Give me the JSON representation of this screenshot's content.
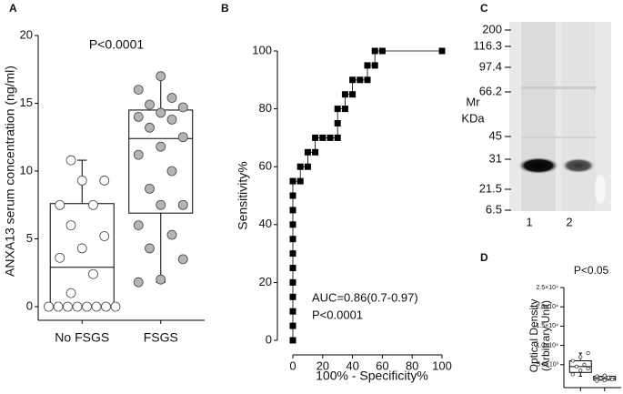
{
  "chart_data": [
    {
      "type": "box",
      "panel": "A",
      "annotation": "P<0.0001",
      "ylabel": "ANXA13 serum concentration (ng/ml)",
      "categories": [
        "No FSGS",
        "FSGS"
      ],
      "ylim": [
        0,
        20
      ],
      "yticks": [
        0,
        5,
        10,
        15,
        20
      ],
      "series": [
        {
          "color": "#ffffff",
          "values": [
            0,
            0,
            0,
            0,
            0,
            0,
            0,
            0,
            1.0,
            2.4,
            3.6,
            4.3,
            5.2,
            6.0,
            7.5,
            7.5,
            9.3,
            9.3,
            10.8
          ],
          "box": {
            "min": 0,
            "q1": 0,
            "median": 2.9,
            "q3": 7.6,
            "max": 10.8
          }
        },
        {
          "color": "#b4b4b4",
          "values": [
            1.8,
            2.0,
            3.5,
            4.3,
            5.3,
            6.0,
            7.5,
            7.5,
            8.7,
            10.0,
            11.2,
            11.8,
            12.5,
            13.2,
            13.8,
            14.0,
            14.3,
            14.7,
            14.9,
            15.4,
            16.0,
            17.0
          ],
          "box": {
            "min": 1.8,
            "q1": 6.9,
            "median": 12.4,
            "q3": 14.5,
            "max": 17.0
          }
        }
      ]
    },
    {
      "type": "line",
      "panel": "B",
      "xlabel": "100% - Specificity%",
      "ylabel": "Sensitivity%",
      "annotations": [
        "AUC=0.86(0.7-0.97)",
        "P<0.0001"
      ],
      "xlim": [
        0,
        100
      ],
      "ylim": [
        0,
        100
      ],
      "xticks": [
        0,
        20,
        40,
        60,
        80,
        100
      ],
      "yticks": [
        0,
        20,
        40,
        60,
        80,
        100
      ],
      "color": "#000000",
      "x": [
        0,
        0,
        0,
        0,
        0,
        0,
        0,
        0,
        0,
        0,
        0,
        0,
        5,
        5,
        10,
        10,
        15,
        15,
        20,
        25,
        30,
        30,
        30,
        35,
        35,
        40,
        40,
        45,
        50,
        50,
        55,
        55,
        60,
        100
      ],
      "values": [
        0,
        5,
        10,
        15,
        20,
        25,
        30,
        35,
        40,
        45,
        50,
        55,
        55,
        60,
        60,
        65,
        65,
        70,
        70,
        70,
        70,
        75,
        80,
        80,
        85,
        85,
        90,
        90,
        90,
        95,
        95,
        100,
        100,
        100
      ]
    },
    {
      "type": "box",
      "panel": "D",
      "annotation": "P<0.05",
      "ylabel": [
        "Optical Density",
        "(Arbitrary Unit)"
      ],
      "categories": [
        null,
        null
      ],
      "ylim": [
        0,
        25000
      ],
      "yticks": [
        {
          "value": 5000,
          "label": "5.0×10³"
        },
        {
          "value": 10000,
          "label": "1.0×10⁴"
        },
        {
          "value": 15000,
          "label": "1.5×10⁴"
        },
        {
          "value": 20000,
          "label": "2.0×10⁴"
        },
        {
          "value": 25000,
          "label": "2.5×10⁴"
        }
      ],
      "series": [
        {
          "color": "#ffffff",
          "values": [
            2500,
            3500,
            4000,
            4500,
            5000,
            6000,
            7000,
            8000
          ],
          "box": {
            "min": 2000,
            "q1": 3000,
            "median": 4500,
            "q3": 6000,
            "max": 8000
          }
        },
        {
          "color": "#ffffff",
          "values": [
            800,
            1000,
            1200,
            1500,
            1700,
            2000,
            2200
          ],
          "box": {
            "min": 700,
            "q1": 1000,
            "median": 1500,
            "q3": 2000,
            "max": 2300
          }
        }
      ]
    }
  ],
  "blot": {
    "panel": "C",
    "markers": [
      "200",
      "116.3",
      "97.4",
      "66.2",
      "45",
      "31",
      "21.5",
      "6.5"
    ],
    "unit": [
      "Mr",
      "KDa"
    ],
    "lanes": [
      "1",
      "2"
    ]
  }
}
